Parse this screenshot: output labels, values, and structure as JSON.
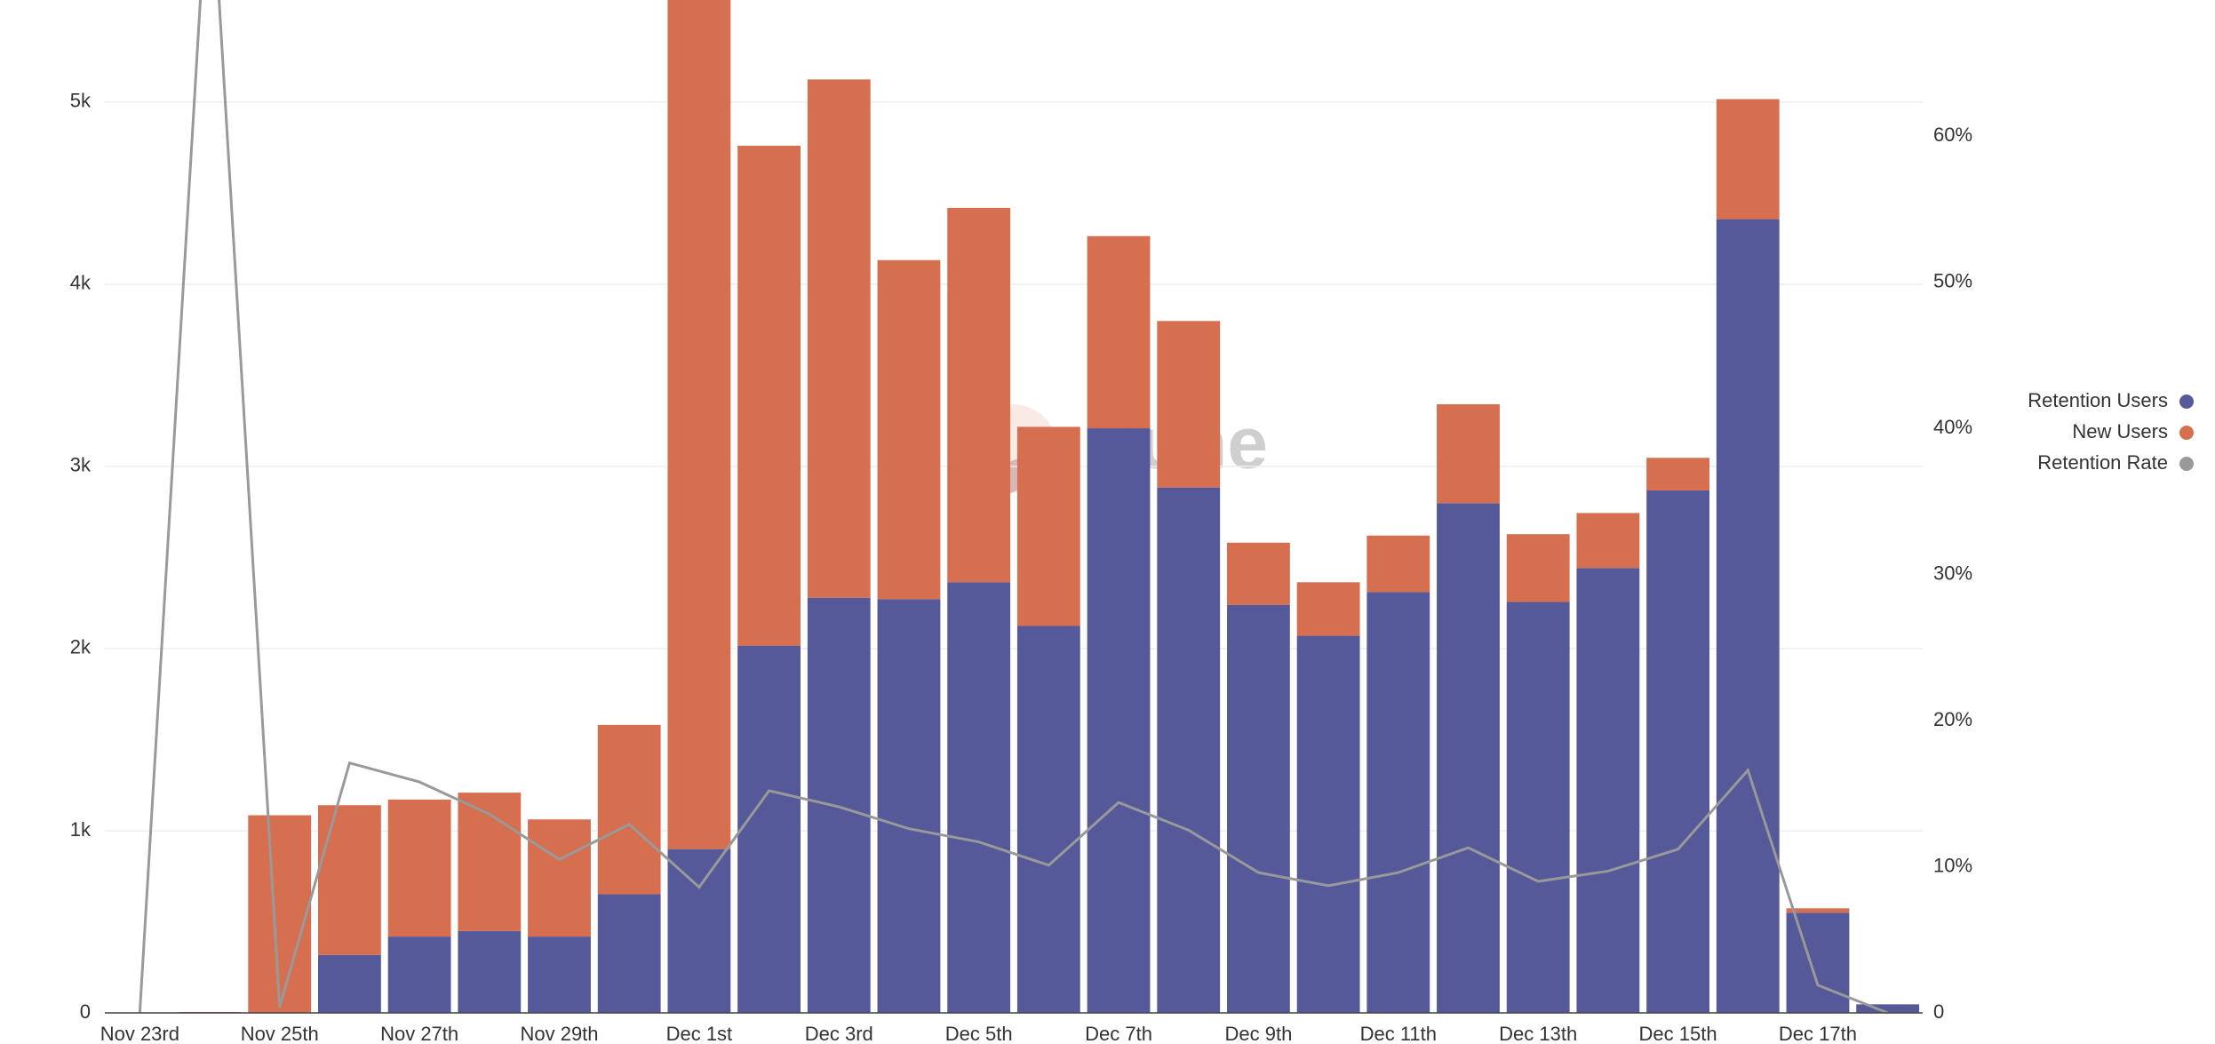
{
  "chart_data": {
    "type": "bar",
    "categories": [
      "Nov 23rd",
      null,
      "Nov 25th",
      null,
      "Nov 27th",
      null,
      "Nov 29th",
      null,
      "Dec 1st",
      null,
      "Dec 3rd",
      null,
      "Dec 5th",
      null,
      "Dec 7th",
      null,
      "Dec 9th",
      null,
      "Dec 11th",
      null,
      "Dec 13th",
      null,
      "Dec 15th",
      null,
      "Dec 17th",
      null
    ],
    "series": [
      {
        "name": "Retention Users",
        "color": "#55599a",
        "values": [
          0,
          0,
          0,
          318,
          419,
          450,
          419,
          651,
          899,
          2016,
          2279,
          2271,
          2364,
          2124,
          3209,
          2884,
          2240,
          2070,
          2310,
          2798,
          2256,
          2442,
          2868,
          4357,
          550,
          47
        ]
      },
      {
        "name": "New Users",
        "color": "#d66e50",
        "values": [
          0,
          5,
          1085,
          822,
          752,
          759,
          643,
          930,
          4701,
          2744,
          2845,
          1861,
          2055,
          1093,
          1055,
          914,
          341,
          294,
          310,
          543,
          372,
          302,
          179,
          659,
          24,
          0
        ]
      },
      {
        "name": "Retention Rate",
        "color": "#999999",
        "type": "line",
        "axis": "y2",
        "values": [
          0,
          80,
          0.4,
          17.1,
          15.8,
          13.6,
          10.5,
          12.9,
          8.6,
          15.2,
          14.1,
          12.6,
          11.7,
          10.1,
          14.4,
          12.5,
          9.6,
          8.7,
          9.6,
          11.3,
          9.0,
          9.7,
          11.2,
          16.6,
          1.9,
          0
        ]
      }
    ],
    "stacked": true,
    "ylim": [
      0,
      5560
    ],
    "yticks": [
      0,
      {
        "value": 1000,
        "label": "1k"
      },
      {
        "value": 2000,
        "label": "2k"
      },
      {
        "value": 3000,
        "label": "3k"
      },
      {
        "value": 4000,
        "label": "4k"
      },
      {
        "value": 5000,
        "label": "5k"
      }
    ],
    "y2lim": [
      0,
      69.3
    ],
    "y2ticks": [
      0,
      {
        "value": 10,
        "label": "10%"
      },
      {
        "value": 20,
        "label": "20%"
      },
      {
        "value": 30,
        "label": "30%"
      },
      {
        "value": 40,
        "label": "40%"
      },
      {
        "value": 50,
        "label": "50%"
      },
      {
        "value": 60,
        "label": "60%"
      }
    ],
    "grid": true,
    "legend": "right",
    "watermark": "Dune"
  }
}
